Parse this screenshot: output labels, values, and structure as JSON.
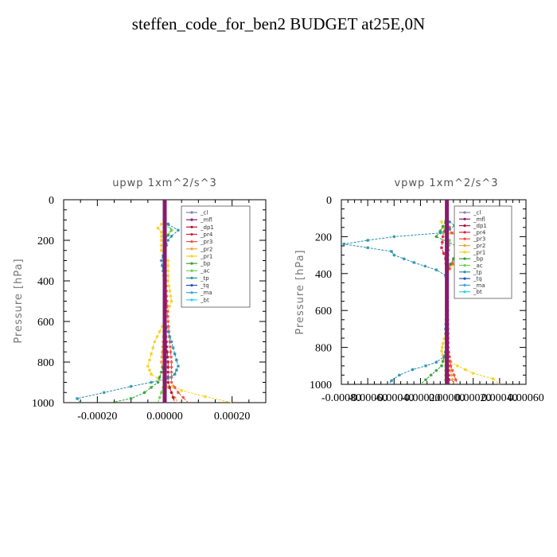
{
  "page": {
    "title": "steffen_code_for_ben2  BUDGET at25E,0N"
  },
  "legend_items": [
    {
      "label": "_cl",
      "color": "#8e7bb5"
    },
    {
      "label": "_mfl",
      "color": "#8a1a6e"
    },
    {
      "label": "_dp1",
      "color": "#b0123c"
    },
    {
      "label": "_pr4",
      "color": "#d8203a"
    },
    {
      "label": "_pr3",
      "color": "#ee5040"
    },
    {
      "label": "_pr2",
      "color": "#f5a030"
    },
    {
      "label": "_pr1",
      "color": "#f8d020"
    },
    {
      "label": "_bp",
      "color": "#30a030"
    },
    {
      "label": "_ac",
      "color": "#70d050"
    },
    {
      "label": "_tp",
      "color": "#2a8fb0"
    },
    {
      "label": "_tq",
      "color": "#2050c0"
    },
    {
      "label": "_ma",
      "color": "#40a0e0"
    },
    {
      "label": "_bt",
      "color": "#30d0f0"
    }
  ],
  "chart_data": [
    {
      "type": "line",
      "title": "upwp   1xm^2/s^3",
      "ylabel": "Pressure [hPa]",
      "xlabel": "",
      "xlim": [
        -0.0003,
        0.0003
      ],
      "ylim": [
        1000,
        0
      ],
      "xticks": [
        "-0.00020",
        "0.00000",
        "0.00020"
      ],
      "xtick_values": [
        -0.0002,
        0,
        0.0002
      ],
      "yticks": [
        "0",
        "200",
        "400",
        "600",
        "800",
        "1000"
      ],
      "ytick_values": [
        0,
        200,
        400,
        600,
        800,
        1000
      ],
      "legend": "top-right",
      "series": [
        {
          "name": "_pr1",
          "color": "#f8d020",
          "p": [
            120,
            140,
            160,
            200,
            250,
            300,
            400,
            500,
            600,
            700,
            760,
            820,
            860,
            900,
            940,
            970,
            1000
          ],
          "values": [
            -1e-05,
            -2e-05,
            -1e-05,
            -1e-05,
            -1e-05,
            1e-05,
            1e-05,
            2e-05,
            0.0,
            -3e-05,
            -4e-05,
            -5e-05,
            -4e-05,
            0.0,
            5e-05,
            0.00012,
            0.0002
          ]
        },
        {
          "name": "_pr2",
          "color": "#f5a030",
          "p": [
            120,
            300,
            600,
            800,
            900,
            950,
            1000
          ],
          "values": [
            0,
            0,
            0,
            -1e-05,
            0,
            2e-05,
            4e-05
          ]
        },
        {
          "name": "_pr3",
          "color": "#ee5040",
          "p": [
            120,
            300,
            600,
            800,
            900,
            950,
            1000
          ],
          "values": [
            0,
            0,
            1e-05,
            2e-05,
            2e-05,
            4e-05,
            7e-05
          ]
        },
        {
          "name": "_dp1",
          "color": "#b0123c",
          "p": [
            120,
            300,
            600,
            800,
            900,
            950,
            1000
          ],
          "values": [
            0,
            0,
            0,
            1e-05,
            1e-05,
            2e-05,
            3e-05
          ]
        },
        {
          "name": "_bp",
          "color": "#30a030",
          "p": [
            120,
            150,
            200,
            400,
            800,
            900,
            950,
            980,
            1000
          ],
          "values": [
            1e-05,
            2e-05,
            0,
            0,
            0,
            -2e-05,
            -6e-05,
            -0.0001,
            -0.00016
          ]
        },
        {
          "name": "_ac",
          "color": "#70d050",
          "p": [
            120,
            150,
            180,
            400,
            900,
            1000
          ],
          "values": [
            0,
            2e-05,
            0,
            0,
            0,
            -2e-05
          ]
        },
        {
          "name": "_tp",
          "color": "#2a8fb0",
          "p": [
            120,
            150,
            180,
            200,
            250,
            300,
            400,
            500,
            600,
            650,
            700,
            760,
            820,
            860,
            880,
            900,
            920,
            950,
            980,
            1000
          ],
          "values": [
            1e-05,
            4e-05,
            2e-05,
            1e-05,
            0.0,
            -1e-05,
            0.0,
            0.0,
            0.0,
            1e-05,
            2e-05,
            3e-05,
            4e-05,
            3e-05,
            1e-05,
            -4e-05,
            -0.0001,
            -0.00018,
            -0.00026,
            -0.00025
          ]
        },
        {
          "name": "_tq",
          "color": "#2050c0",
          "p": [
            120,
            600,
            1000
          ],
          "values": [
            0,
            0,
            0
          ]
        },
        {
          "name": "_mfl",
          "color": "#8a1a6e",
          "p": [
            0,
            1000
          ],
          "values": [
            0,
            0
          ],
          "width": 5
        }
      ]
    },
    {
      "type": "line",
      "title": "vpwp   1xm^2/s^3",
      "ylabel": "Pressure [hPa]",
      "xlabel": "",
      "xlim": [
        -0.0008,
        0.0006
      ],
      "ylim": [
        1000,
        0
      ],
      "xticks": [
        "-0.00080",
        "-0.00060",
        "-0.00040",
        "-0.00020",
        "0.00000",
        "0.00020",
        "0.00040",
        "0.00060"
      ],
      "xtick_values": [
        -0.0008,
        -0.0006,
        -0.0004,
        -0.0002,
        0,
        0.0002,
        0.0004,
        0.0006
      ],
      "yticks": [
        "0",
        "200",
        "400",
        "600",
        "800",
        "1000"
      ],
      "ytick_values": [
        0,
        200,
        400,
        600,
        800,
        1000
      ],
      "legend": "top-right",
      "series": [
        {
          "name": "_pr1",
          "color": "#f8d020",
          "p": [
            120,
            150,
            180,
            200,
            220,
            240,
            260,
            300,
            350,
            400,
            500,
            700,
            780,
            820,
            860,
            900,
            940,
            970,
            1000
          ],
          "values": [
            -4e-05,
            -3e-05,
            0.0,
            0.00022,
            0.0004,
            0.00044,
            0.0003,
            0.00015,
            5e-05,
            0.0,
            0.0,
            0.0,
            -3e-05,
            -4e-05,
            -2e-05,
            8e-05,
            0.0002,
            0.00035,
            0.0004
          ]
        },
        {
          "name": "_pr2",
          "color": "#f5a030",
          "p": [
            120,
            180,
            200,
            240,
            280,
            320,
            400,
            800,
            900,
            1000
          ],
          "values": [
            0,
            3e-05,
            0.00013,
            0.00018,
            0.00012,
            5e-05,
            0,
            0,
            2e-05,
            5e-05
          ]
        },
        {
          "name": "_pr3",
          "color": "#ee5040",
          "p": [
            120,
            180,
            200,
            240,
            280,
            320,
            400,
            800,
            900,
            1000
          ],
          "values": [
            0,
            4e-05,
            0.0001,
            0.00015,
            0.00014,
            6e-05,
            0,
            1e-05,
            3e-05,
            8e-05
          ]
        },
        {
          "name": "_pr4",
          "color": "#d8203a",
          "p": [
            120,
            200,
            260,
            320,
            400,
            900,
            1000
          ],
          "values": [
            0,
            -3e-05,
            -4e-05,
            -1e-05,
            0,
            1e-05,
            2e-05
          ]
        },
        {
          "name": "_bp",
          "color": "#30a030",
          "p": [
            120,
            170,
            200,
            260,
            320,
            380,
            800,
            900,
            950,
            1000
          ],
          "values": [
            -1e-05,
            -5e-05,
            -8e-05,
            0.0001,
            5e-05,
            0.0,
            0.0,
            -4e-05,
            -0.00012,
            -0.0002
          ]
        },
        {
          "name": "_ac",
          "color": "#70d050",
          "p": [
            120,
            180,
            220,
            300,
            400,
            1000
          ],
          "values": [
            0,
            -3e-05,
            2e-05,
            1e-05,
            0,
            -1e-05
          ]
        },
        {
          "name": "_tp",
          "color": "#2a8fb0",
          "p": [
            120,
            140,
            160,
            180,
            200,
            220,
            240,
            260,
            280,
            300,
            340,
            380,
            410,
            440,
            500,
            600,
            700,
            800,
            850,
            880,
            900,
            920,
            950,
            980,
            1000
          ],
          "values": [
            2e-05,
            6e-05,
            2e-05,
            -5e-05,
            -0.0004,
            -0.0006,
            -0.00078,
            -0.0006,
            -0.00042,
            -0.0004,
            -0.00025,
            -8e-05,
            -1e-05,
            0.0,
            0.0,
            0.0,
            -1e-05,
            0.0,
            -2e-05,
            -8e-05,
            -0.00016,
            -0.00026,
            -0.00036,
            -0.00042,
            -0.00044
          ]
        },
        {
          "name": "_tq",
          "color": "#2050c0",
          "p": [
            120,
            600,
            1000
          ],
          "values": [
            0,
            0,
            0
          ]
        },
        {
          "name": "_mfl",
          "color": "#8a1a6e",
          "p": [
            0,
            1000
          ],
          "values": [
            0,
            0
          ],
          "width": 5
        }
      ]
    }
  ]
}
